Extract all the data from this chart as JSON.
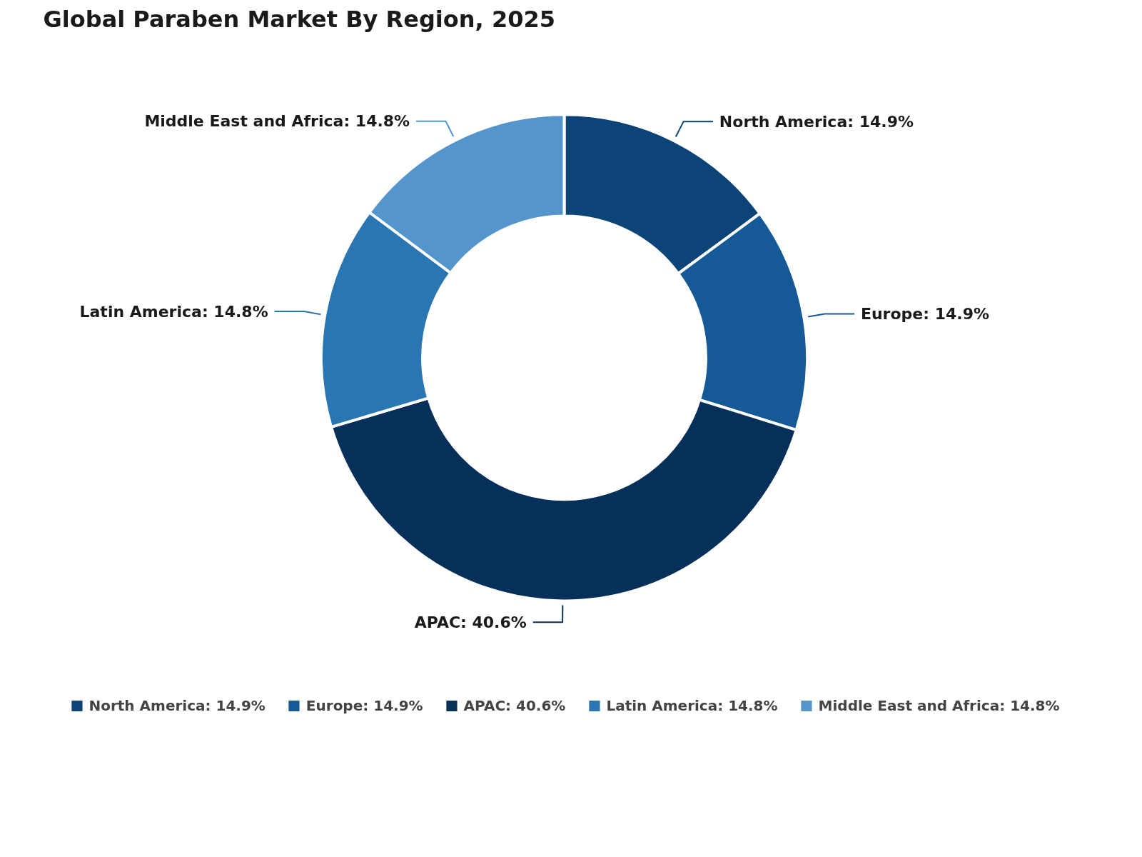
{
  "chart_data": {
    "type": "donut",
    "title": "Global Paraben Market By Region, 2025",
    "categories": [
      "North America",
      "Europe",
      "APAC",
      "Latin America",
      "Middle East and Africa"
    ],
    "values": [
      14.9,
      14.9,
      40.6,
      14.8,
      14.8
    ],
    "value_labels": [
      "14.9%",
      "14.9%",
      "40.6%",
      "14.8%",
      "14.8%"
    ],
    "colors": [
      "#0d4477",
      "#155a96",
      "#06305a",
      "#2a76b3",
      "#5496cc"
    ],
    "legend": "bottom"
  }
}
